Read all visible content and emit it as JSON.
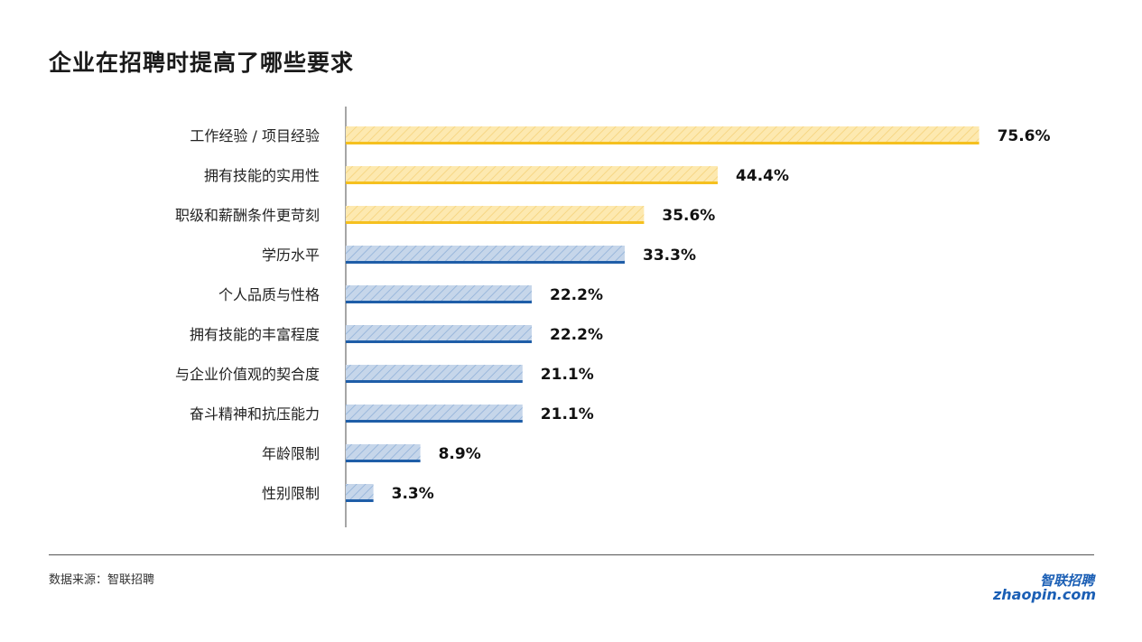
{
  "title": "企业在招聘时提高了哪些要求",
  "source": "数据来源：智联招聘",
  "logo": {
    "cn": "智联招聘",
    "en": "zhaopin.com"
  },
  "colors": {
    "highlight_fill": "#fde9b0",
    "highlight_hatch": "#f5d27a",
    "highlight_base": "#f5c01f",
    "normal_fill": "#c6d6ea",
    "normal_hatch": "#8fb0d8",
    "normal_base": "#1f5ea8"
  },
  "chart_data": {
    "type": "bar",
    "orientation": "horizontal",
    "categories": [
      "工作经验 / 项目经验",
      "拥有技能的实用性",
      "职级和薪酬条件更苛刻",
      "学历水平",
      "个人品质与性格",
      "拥有技能的丰富程度",
      "与企业价值观的契合度",
      "奋斗精神和抗压能力",
      "年龄限制",
      "性别限制"
    ],
    "values": [
      75.6,
      44.4,
      35.6,
      33.3,
      22.2,
      22.2,
      21.1,
      21.1,
      8.9,
      3.3
    ],
    "value_labels": [
      "75.6%",
      "44.4%",
      "35.6%",
      "33.3%",
      "22.2%",
      "22.2%",
      "21.1%",
      "21.1%",
      "8.9%",
      "3.3%"
    ],
    "highlighted_count": 3,
    "xlim": [
      0,
      100
    ],
    "grid": false
  }
}
